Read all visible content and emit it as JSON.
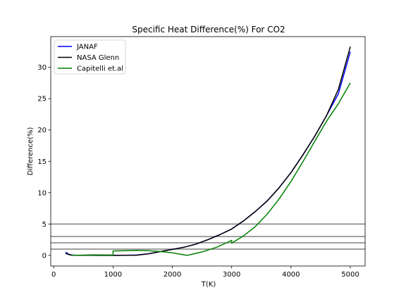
{
  "chart_data": {
    "type": "line",
    "title": "Specific Heat Difference(%) For CO2",
    "xlabel": "T(K)",
    "ylabel": "Difference(%)",
    "xlim": [
      -50,
      5250
    ],
    "ylim": [
      -1.7,
      34.9
    ],
    "xticks": [
      0,
      1000,
      2000,
      3000,
      4000,
      5000
    ],
    "yticks": [
      0,
      5,
      10,
      15,
      20,
      25,
      30
    ],
    "grid": false,
    "legend_position": "top-left",
    "series": [
      {
        "name": "JANAF",
        "color": "#0000ff",
        "points": [
          [
            200,
            0.5
          ],
          [
            250,
            0.2
          ],
          [
            298,
            0.05
          ],
          [
            400,
            0.02
          ],
          [
            600,
            0.02
          ],
          [
            800,
            0.01
          ],
          [
            1000,
            0.0
          ],
          [
            1200,
            0.02
          ],
          [
            1400,
            0.05
          ],
          [
            1600,
            0.25
          ],
          [
            1800,
            0.6
          ],
          [
            2000,
            0.95
          ],
          [
            2200,
            1.3
          ],
          [
            2400,
            1.8
          ],
          [
            2600,
            2.5
          ],
          [
            2800,
            3.3
          ],
          [
            3000,
            4.2
          ],
          [
            3200,
            5.5
          ],
          [
            3400,
            7.0
          ],
          [
            3600,
            8.7
          ],
          [
            3800,
            10.8
          ],
          [
            4000,
            13.2
          ],
          [
            4200,
            16.0
          ],
          [
            4400,
            19.0
          ],
          [
            4600,
            22.3
          ],
          [
            4800,
            25.8
          ],
          [
            5000,
            32.5
          ]
        ]
      },
      {
        "name": "NASA Glenn",
        "color": "#000000",
        "points": [
          [
            200,
            0.3
          ],
          [
            250,
            0.15
          ],
          [
            298,
            0.03
          ],
          [
            400,
            0.0
          ],
          [
            600,
            0.01
          ],
          [
            800,
            0.0
          ],
          [
            1000,
            0.0
          ],
          [
            1200,
            0.01
          ],
          [
            1400,
            0.03
          ],
          [
            1600,
            0.25
          ],
          [
            1800,
            0.6
          ],
          [
            2000,
            0.95
          ],
          [
            2200,
            1.3
          ],
          [
            2400,
            1.8
          ],
          [
            2600,
            2.5
          ],
          [
            2800,
            3.3
          ],
          [
            3000,
            4.2
          ],
          [
            3200,
            5.5
          ],
          [
            3400,
            7.0
          ],
          [
            3600,
            8.7
          ],
          [
            3800,
            10.8
          ],
          [
            4000,
            13.2
          ],
          [
            4200,
            16.0
          ],
          [
            4400,
            19.0
          ],
          [
            4600,
            22.3
          ],
          [
            4800,
            26.5
          ],
          [
            5000,
            33.3
          ]
        ]
      },
      {
        "name": "Capitelli et.al",
        "color": "#008000",
        "points": [
          [
            298,
            0.0
          ],
          [
            400,
            0.02
          ],
          [
            600,
            0.06
          ],
          [
            700,
            0.08
          ],
          [
            800,
            0.06
          ],
          [
            1000,
            0.05
          ],
          [
            1000,
            0.7
          ],
          [
            1200,
            0.75
          ],
          [
            1400,
            0.8
          ],
          [
            1600,
            0.75
          ],
          [
            1800,
            0.6
          ],
          [
            2000,
            0.4
          ],
          [
            2250,
            0.0
          ],
          [
            2500,
            0.55
          ],
          [
            2750,
            1.3
          ],
          [
            3000,
            2.4
          ],
          [
            3000,
            1.95
          ],
          [
            3200,
            3.1
          ],
          [
            3400,
            4.6
          ],
          [
            3600,
            6.6
          ],
          [
            3800,
            9.0
          ],
          [
            4000,
            11.8
          ],
          [
            4200,
            14.9
          ],
          [
            4400,
            18.2
          ],
          [
            4600,
            21.4
          ],
          [
            4800,
            24.2
          ],
          [
            5000,
            27.5
          ]
        ]
      }
    ],
    "hlines": {
      "color": "#808080",
      "values": [
        1,
        2,
        3,
        5
      ]
    }
  }
}
